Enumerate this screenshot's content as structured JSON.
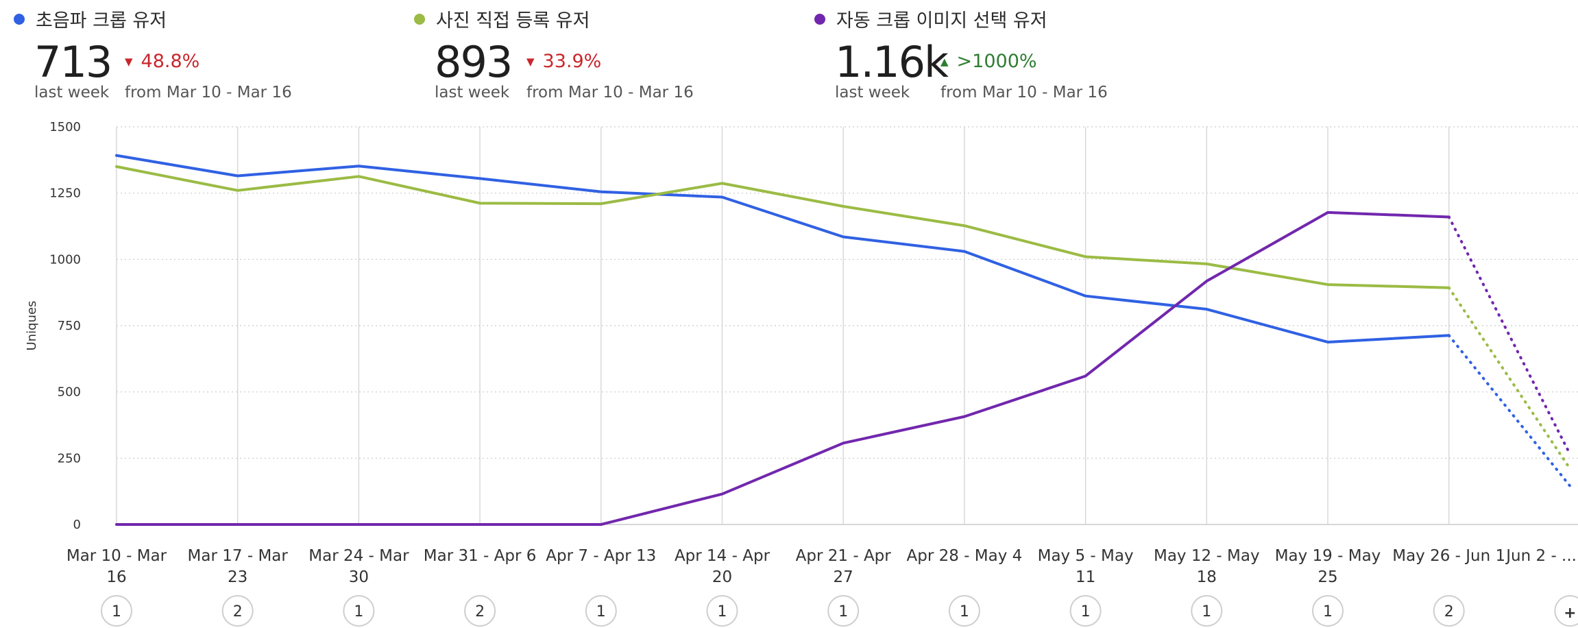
{
  "metrics": [
    {
      "legend": "초음파 크롭 유저",
      "color": "#3061e3",
      "value": "713",
      "period": "last week",
      "change": "48.8%",
      "direction": "down",
      "from": "from Mar 10 - Mar 16"
    },
    {
      "legend": "사진 직접 등록 유저",
      "color": "#9bbb44",
      "value": "893",
      "period": "last week",
      "change": "33.9%",
      "direction": "down",
      "from": "from Mar 10 - Mar 16"
    },
    {
      "legend": "자동 크롭 이미지 선택 유저",
      "color": "#7127ad",
      "value": "1.16k",
      "period": "last week",
      "change": ">1000%",
      "direction": "up",
      "from": "from Mar 10 - Mar 16"
    }
  ],
  "chart_data": {
    "type": "line",
    "ylabel": "Uniques",
    "xlabel": "",
    "ylim": [
      0,
      1500
    ],
    "yticks": [
      0,
      250,
      500,
      750,
      1000,
      1250,
      1500
    ],
    "grid": true,
    "categories": [
      [
        "Mar 10 - Mar",
        "16"
      ],
      [
        "Mar 17 - Mar",
        "23"
      ],
      [
        "Mar 24 - Mar",
        "30"
      ],
      [
        "Mar 31 - Apr 6"
      ],
      [
        "Apr 7 - Apr 13"
      ],
      [
        "Apr 14 - Apr",
        "20"
      ],
      [
        "Apr 21 - Apr",
        "27"
      ],
      [
        "Apr 28 - May 4"
      ],
      [
        "May 5 - May",
        "11"
      ],
      [
        "May 12 - May",
        "18"
      ],
      [
        "May 19 - May",
        "25"
      ],
      [
        "May 26 - Jun 1"
      ],
      [
        "Jun 2 - ..."
      ]
    ],
    "series": [
      {
        "name": "초음파 크롭 유저",
        "color": "#3061e3",
        "values": [
          1392,
          1315,
          1352,
          1305,
          1255,
          1235,
          1085,
          1030,
          862,
          812,
          688,
          713,
          145
        ]
      },
      {
        "name": "사진 직접 등록 유저",
        "color": "#9bbb44",
        "values": [
          1350,
          1260,
          1313,
          1212,
          1210,
          1287,
          1200,
          1127,
          1010,
          983,
          905,
          893,
          210
        ]
      },
      {
        "name": "자동 크롭 이미지 선택 유저",
        "color": "#7127ad",
        "values": [
          0,
          0,
          0,
          0,
          0,
          115,
          307,
          407,
          560,
          918,
          1177,
          1160,
          265
        ]
      }
    ],
    "last_segment_style": "dotted",
    "annotations": [
      "1",
      "2",
      "1",
      "2",
      "1",
      "1",
      "1",
      "1",
      "1",
      "1",
      "1",
      "2",
      "+"
    ]
  }
}
